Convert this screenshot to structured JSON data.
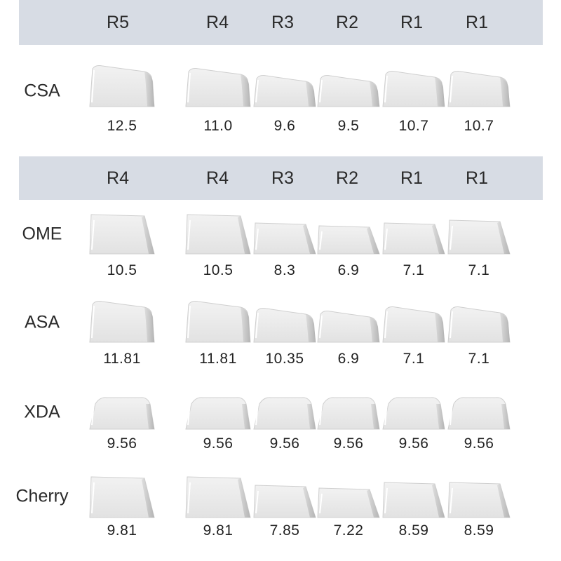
{
  "headers": [
    {
      "labels": [
        "R5",
        "R4",
        "R3",
        "R2",
        "R1",
        "R1"
      ]
    },
    {
      "labels": [
        "R4",
        "R4",
        "R3",
        "R2",
        "R1",
        "R1"
      ]
    }
  ],
  "profiles": [
    {
      "name": "CSA",
      "values": [
        "12.5",
        "11.0",
        "9.6",
        "9.5",
        "10.7",
        "10.7"
      ]
    },
    {
      "name": "OME",
      "values": [
        "10.5",
        "10.5",
        "8.3",
        "6.9",
        "7.1",
        "7.1"
      ]
    },
    {
      "name": "ASA",
      "values": [
        "11.81",
        "11.81",
        "10.35",
        "6.9",
        "7.1",
        "7.1"
      ]
    },
    {
      "name": "XDA",
      "values": [
        "9.56",
        "9.56",
        "9.56",
        "9.56",
        "9.56",
        "9.56"
      ]
    },
    {
      "name": "Cherry",
      "values": [
        "9.81",
        "9.81",
        "7.85",
        "7.22",
        "8.59",
        "8.59"
      ]
    }
  ],
  "colors": {
    "header_band": "#d7dce4",
    "keycap": "#e9e9e9",
    "keycap_edge": "#b8b8b8"
  }
}
